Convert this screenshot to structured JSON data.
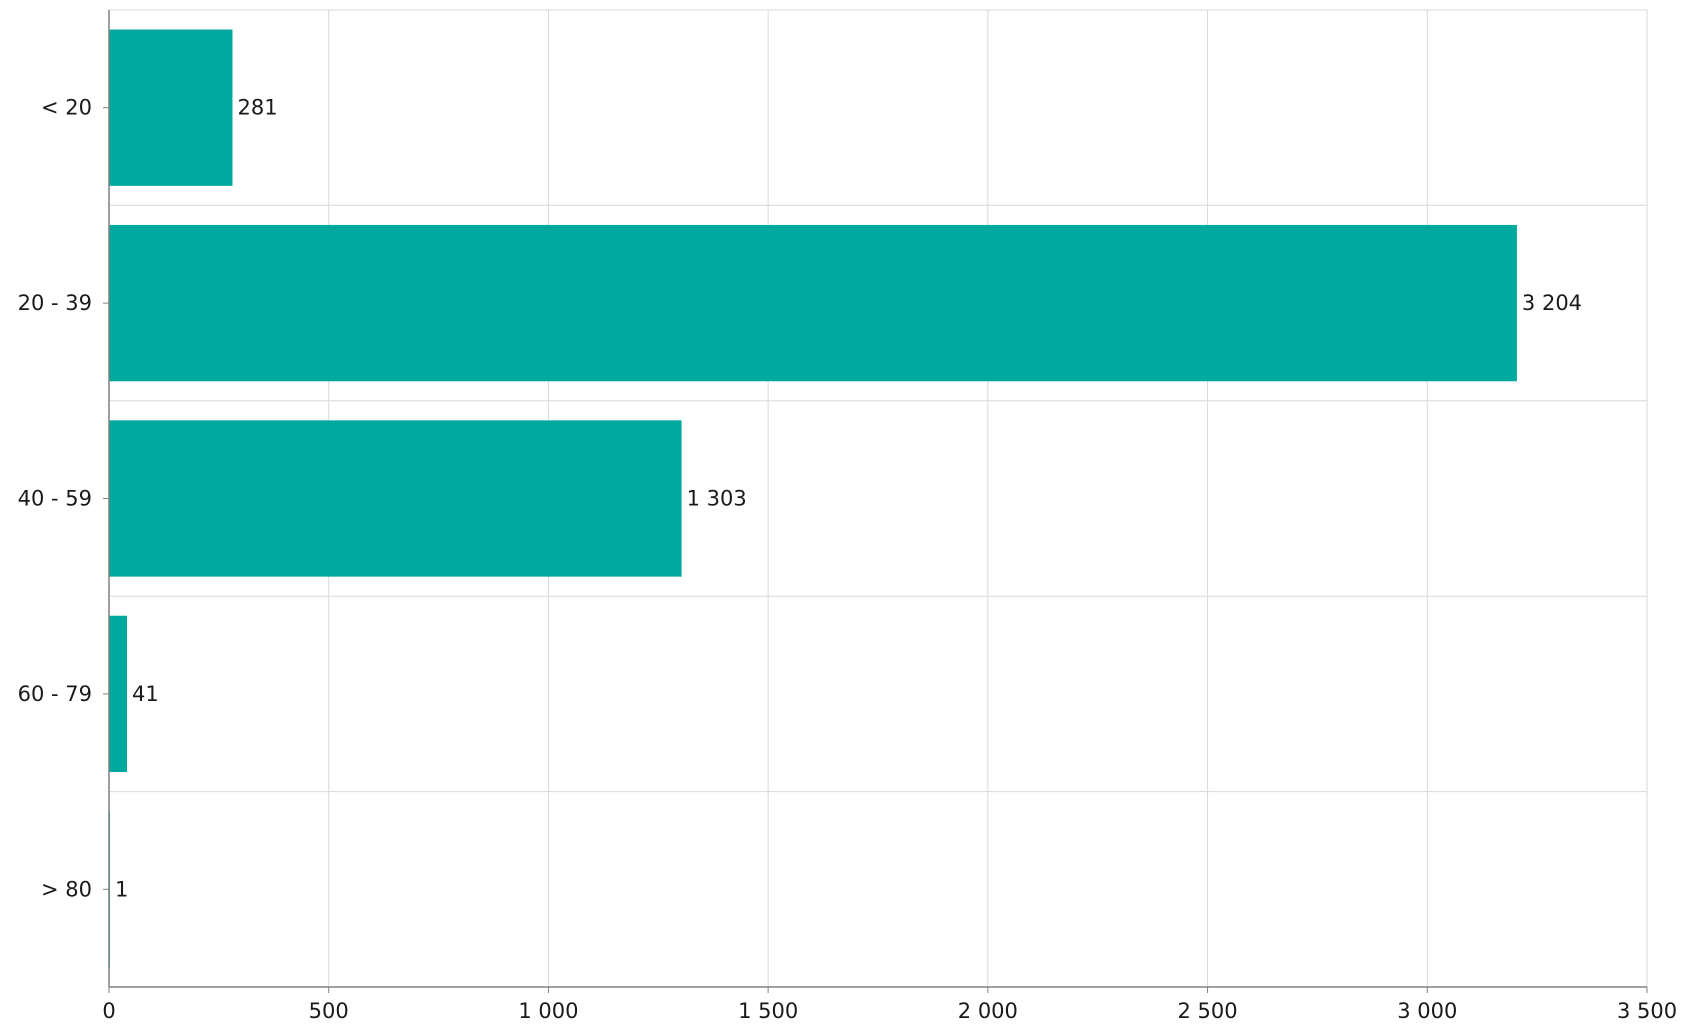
{
  "chart_data": {
    "type": "bar",
    "orientation": "horizontal",
    "title": "",
    "xlabel": "",
    "ylabel": "",
    "categories": [
      "< 20",
      "20 - 39",
      "40 - 59",
      "60 - 79",
      "> 80"
    ],
    "values": [
      281,
      3204,
      1303,
      41,
      1
    ],
    "value_labels": [
      "281",
      "3 204",
      "1 303",
      "41",
      "1"
    ],
    "xlim": [
      0,
      3500
    ],
    "x_ticks": [
      0,
      500,
      1000,
      1500,
      2000,
      2500,
      3000,
      3500
    ],
    "x_tick_labels": [
      "0",
      "500",
      "1 000",
      "1 500",
      "2 000",
      "2 500",
      "3 000",
      "3 500"
    ],
    "grid": true,
    "legend": "none",
    "colors": {
      "bar": "#00a99d",
      "grid": "#d9d9d9",
      "axis": "#808080"
    }
  }
}
